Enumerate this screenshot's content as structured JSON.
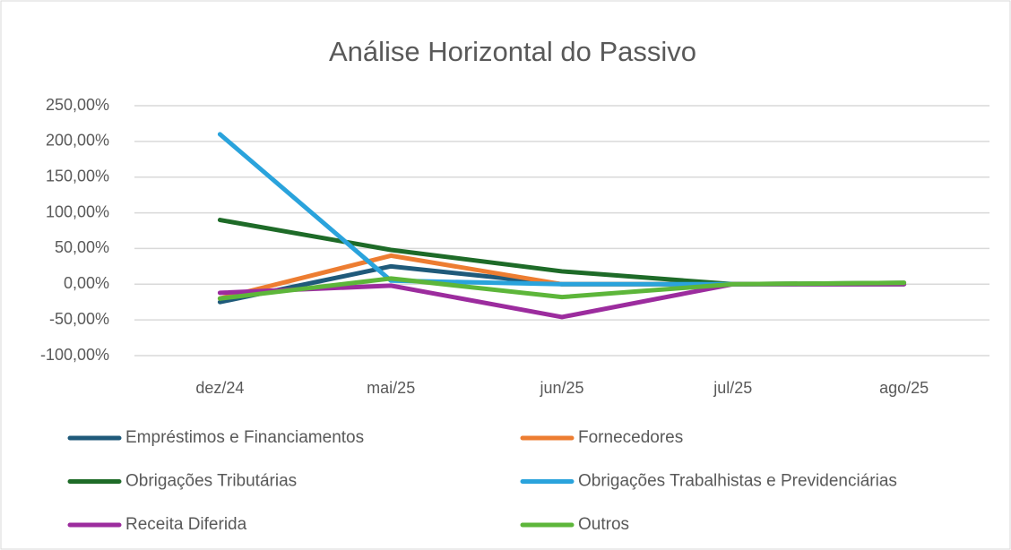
{
  "chart_data": {
    "type": "line",
    "title": "Análise Horizontal do Passivo",
    "categories": [
      "dez/24",
      "mai/25",
      "jun/25",
      "jul/25",
      "ago/25"
    ],
    "series": [
      {
        "name": "Empréstimos e Financiamentos",
        "color": "#1f5a7a",
        "values": [
          -25,
          25,
          0,
          0,
          0
        ]
      },
      {
        "name": "Fornecedores",
        "color": "#ed7d31",
        "values": [
          -20,
          40,
          0,
          0,
          0
        ]
      },
      {
        "name": "Obrigações Tributárias",
        "color": "#1e6b28",
        "values": [
          90,
          48,
          18,
          0,
          2
        ]
      },
      {
        "name": "Obrigações Trabalhistas e Previdenciárias",
        "color": "#2aa3dc",
        "values": [
          210,
          5,
          0,
          0,
          0
        ]
      },
      {
        "name": "Receita Diferida",
        "color": "#9c2c9e",
        "values": [
          -12,
          -2,
          -46,
          0,
          0
        ]
      },
      {
        "name": "Outros",
        "color": "#5db63a",
        "values": [
          -20,
          8,
          -18,
          0,
          2
        ]
      }
    ],
    "ylim": [
      -100,
      250
    ],
    "yticks": [
      {
        "value": -100,
        "label": "-100,00%"
      },
      {
        "value": -50,
        "label": "-50,00%"
      },
      {
        "value": 0,
        "label": "0,00%"
      },
      {
        "value": 50,
        "label": "50,00%"
      },
      {
        "value": 100,
        "label": "100,00%"
      },
      {
        "value": 150,
        "label": "150,00%"
      },
      {
        "value": 200,
        "label": "200,00%"
      },
      {
        "value": 250,
        "label": "250,00%"
      }
    ],
    "grid": true,
    "legend": "bottom"
  }
}
